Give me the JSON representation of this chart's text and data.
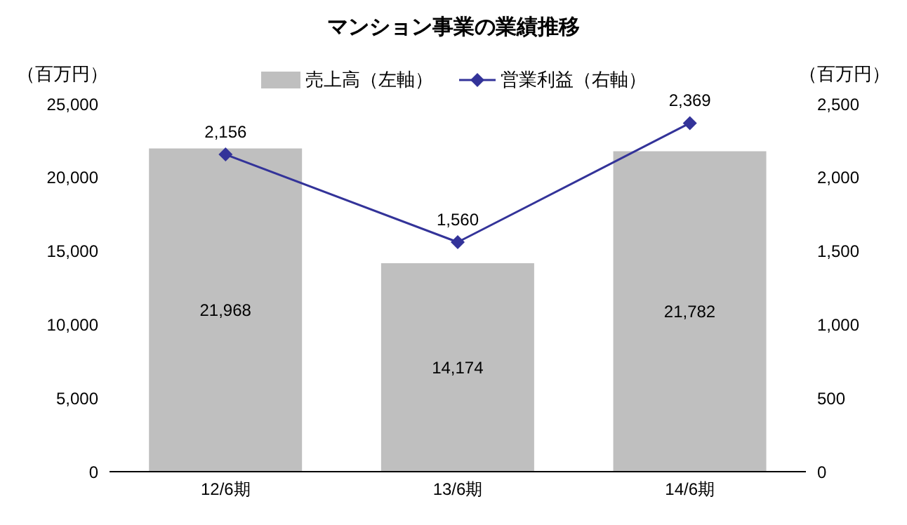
{
  "chart_data": {
    "type": "bar",
    "title": "マンション事業の業績推移",
    "ylabel": "（百万円）",
    "y2label": "（百万円）",
    "categories": [
      "12/6期",
      "13/6期",
      "14/6期"
    ],
    "series": [
      {
        "name": "売上高（左軸）",
        "color": "#bfbfbf",
        "values": [
          21968,
          14174,
          21782
        ],
        "value_labels": [
          "21,968",
          "14,174",
          "21,782"
        ]
      },
      {
        "name": "営業利益（右軸）",
        "type": "line",
        "axis": "y2",
        "color": "#333399",
        "values": [
          2156,
          1560,
          2369
        ],
        "value_labels": [
          "2,156",
          "1,560",
          "2,369"
        ]
      }
    ],
    "ylim": [
      0,
      25000
    ],
    "yticks": [
      0,
      {
        "value": 5000,
        "label": "5,000"
      },
      {
        "value": 10000,
        "label": "10,000"
      },
      {
        "value": 15000,
        "label": "15,000"
      },
      {
        "value": 20000,
        "label": "20,000"
      },
      {
        "value": 25000,
        "label": "25,000"
      }
    ],
    "y2lim": [
      0,
      2500
    ],
    "y2ticks": [
      0,
      500,
      {
        "value": 1000,
        "label": "1,000"
      },
      {
        "value": 1500,
        "label": "1,500"
      },
      {
        "value": 2000,
        "label": "2,000"
      },
      {
        "value": 2500,
        "label": "2,500"
      }
    ],
    "legend": "top",
    "marker": "diamond",
    "line_style": "solid"
  }
}
